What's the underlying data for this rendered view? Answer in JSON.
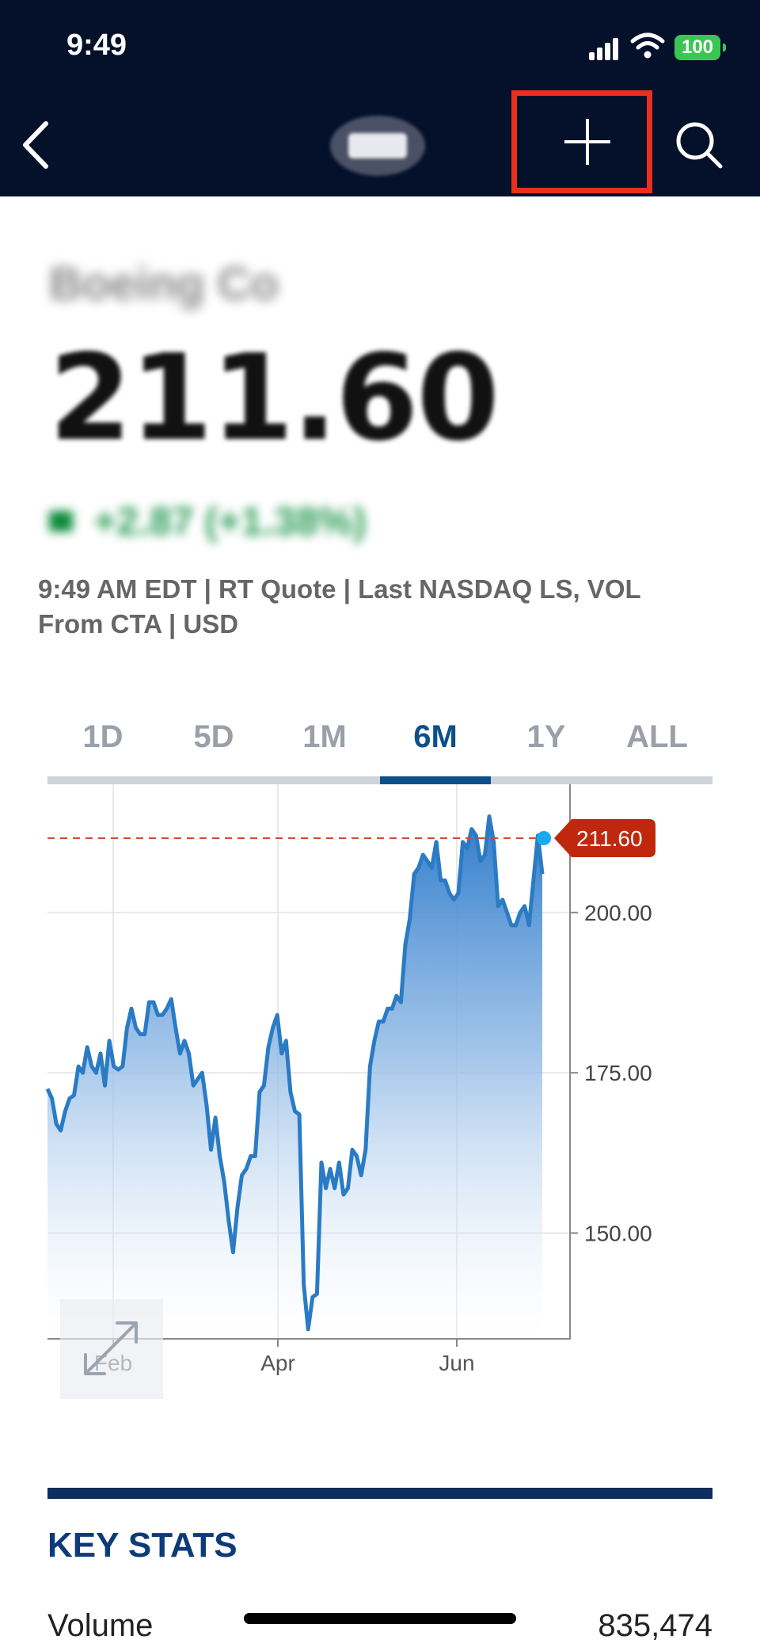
{
  "status_bar": {
    "time": "9:49",
    "battery": "100"
  },
  "header": {
    "logo_text": ""
  },
  "quote": {
    "company": "Boeing Co",
    "price": "211.60",
    "change": "+2.87 (+1.38%)",
    "meta": "9:49 AM EDT | RT Quote | Last NASDAQ LS, VOL From CTA | USD"
  },
  "range_tabs": [
    {
      "label": "1D"
    },
    {
      "label": "5D"
    },
    {
      "label": "1M"
    },
    {
      "label": "6M"
    },
    {
      "label": "1Y"
    },
    {
      "label": "ALL"
    }
  ],
  "active_tab": "6M",
  "colors": {
    "header_bg": "#05112b",
    "accent": "#0d4f8b",
    "line": "#2b7bc4",
    "price_tag": "#c0280e",
    "highlight_box": "#e8301c"
  },
  "chart_data": {
    "type": "area",
    "x_tick_labels": [
      "Feb",
      "Apr",
      "Jun"
    ],
    "y_tick_labels": [
      "150.00",
      "175.00",
      "200.00"
    ],
    "ylim": [
      133.5,
      220
    ],
    "current_price": 211.6,
    "current_price_label": "211.60",
    "values": [
      172.5,
      171,
      167,
      166,
      169,
      171,
      171.5,
      176,
      175,
      179,
      176,
      175,
      178,
      173,
      180,
      176,
      175.5,
      176,
      182,
      185,
      182,
      181,
      181,
      186,
      186,
      184,
      184,
      185,
      186.5,
      182,
      178,
      180,
      178,
      173,
      174,
      175,
      170,
      163,
      168,
      162,
      158,
      152,
      147,
      154,
      159,
      160,
      162,
      162,
      172,
      173,
      179,
      182,
      184,
      178,
      180,
      172,
      169,
      168.5,
      142,
      135,
      140,
      140.5,
      161,
      157,
      160,
      157,
      161,
      156,
      157,
      163,
      162,
      159,
      163,
      176,
      180,
      183,
      183,
      185,
      185,
      187,
      186,
      195,
      199,
      206,
      207,
      209,
      208,
      207,
      211,
      205,
      205,
      203,
      202,
      203,
      211,
      210,
      213,
      212,
      208,
      209,
      215,
      211,
      201,
      202,
      200,
      198,
      198,
      200,
      201,
      198,
      205,
      212,
      206
    ]
  },
  "key_stats": {
    "title": "KEY STATS",
    "rows": [
      {
        "label": "Volume",
        "value": "835,474"
      }
    ]
  }
}
